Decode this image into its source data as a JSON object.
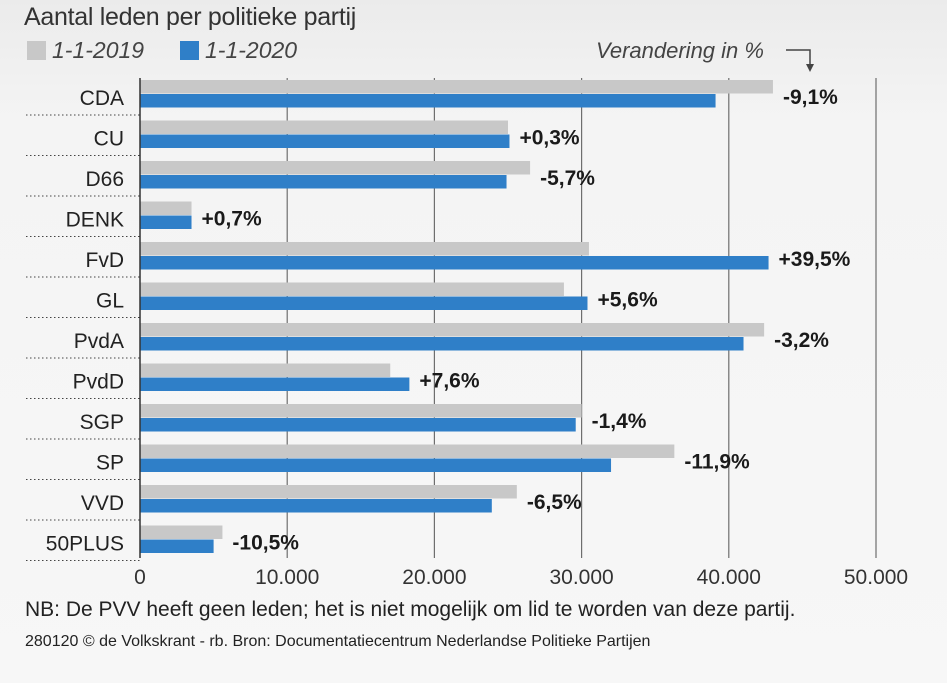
{
  "title": "Aantal leden per politieke partij",
  "legend": [
    {
      "label": "1-1-2019",
      "color": "#c8c8c8"
    },
    {
      "label": "1-1-2020",
      "color": "#2f7fc8"
    }
  ],
  "change_label": "Verandering in %",
  "chart_data": {
    "type": "bar",
    "orientation": "horizontal",
    "title": "Aantal leden per politieke partij",
    "categories": [
      "CDA",
      "CU",
      "D66",
      "DENK",
      "FvD",
      "GL",
      "PvdA",
      "PvdD",
      "SGP",
      "SP",
      "VVD",
      "50PLUS"
    ],
    "series": [
      {
        "name": "1-1-2019",
        "values": [
          43000,
          25000,
          26500,
          3500,
          30500,
          28800,
          42400,
          17000,
          30000,
          36300,
          25600,
          5600
        ]
      },
      {
        "name": "1-1-2020",
        "values": [
          39100,
          25100,
          24900,
          3500,
          42700,
          30400,
          41000,
          18300,
          29600,
          32000,
          23900,
          5000
        ]
      }
    ],
    "changes": [
      "-9,1%",
      "+0,3%",
      "-5,7%",
      "+0,7%",
      "+39,5%",
      "+5,6%",
      "-3,2%",
      "+7,6%",
      "-1,4%",
      "-11,9%",
      "-6,5%",
      "-10,5%"
    ],
    "xlim": [
      0,
      50000
    ],
    "ticks": [
      0,
      10000,
      20000,
      30000,
      40000,
      50000
    ],
    "tick_labels": [
      "0",
      "10.000",
      "20.000",
      "30.000",
      "40.000",
      "50.000"
    ],
    "grid": true
  },
  "note": "NB: De PVV heeft geen leden; het is niet mogelijk om lid te worden van deze partij.",
  "source": "280120 © de Volkskrant - rb. Bron: Documentatiecentrum Nederlandse Politieke Partijen"
}
